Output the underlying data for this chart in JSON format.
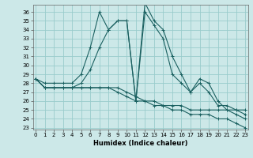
{
  "xlabel": "Humidex (Indice chaleur)",
  "bg_color": "#cce8e8",
  "grid_color": "#99cccc",
  "line_color": "#1a6060",
  "x_ticks": [
    0,
    1,
    2,
    3,
    4,
    5,
    6,
    7,
    8,
    9,
    10,
    11,
    12,
    13,
    14,
    15,
    16,
    17,
    18,
    19,
    20,
    21,
    22,
    23
  ],
  "y_ticks": [
    23,
    24,
    25,
    26,
    27,
    28,
    29,
    30,
    31,
    32,
    33,
    34,
    35,
    36
  ],
  "ylim": [
    22.8,
    36.8
  ],
  "xlim": [
    -0.3,
    23.3
  ],
  "series": [
    [
      28.5,
      28,
      28,
      28,
      28,
      29,
      32,
      36,
      34,
      35,
      35,
      26,
      37,
      35,
      34,
      31,
      29,
      27,
      28.5,
      28,
      26,
      25,
      25,
      25
    ],
    [
      28.5,
      27.5,
      27.5,
      27.5,
      27.5,
      28,
      29.5,
      32,
      34,
      35,
      35,
      26,
      36,
      34.5,
      33,
      29,
      28,
      27,
      28,
      27,
      25.5,
      25.5,
      25,
      24.5
    ],
    [
      28.5,
      27.5,
      27.5,
      27.5,
      27.5,
      27.5,
      27.5,
      27.5,
      27.5,
      27.5,
      27,
      26.5,
      26,
      26,
      25.5,
      25.5,
      25.5,
      25,
      25,
      25,
      25,
      25,
      24.5,
      24
    ],
    [
      28.5,
      27.5,
      27.5,
      27.5,
      27.5,
      27.5,
      27.5,
      27.5,
      27.5,
      27,
      26.5,
      26,
      26,
      25.5,
      25.5,
      25,
      25,
      24.5,
      24.5,
      24.5,
      24,
      24,
      23.5,
      23
    ]
  ]
}
